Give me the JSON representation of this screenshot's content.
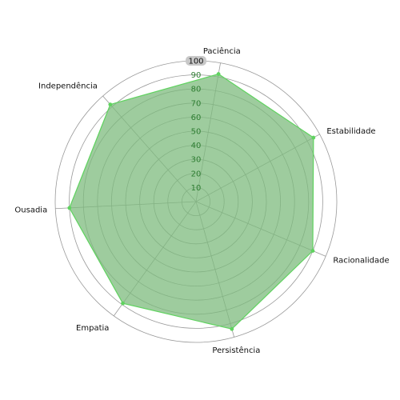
{
  "chart_data": {
    "type": "radar",
    "categories": [
      "Paciência",
      "Estabilidade",
      "Racionalidade",
      "Persistência",
      "Empatia",
      "Ousadia",
      "Independência"
    ],
    "series": [
      {
        "values": [
          92,
          95,
          90,
          94,
          89,
          90,
          92
        ]
      }
    ],
    "r_ticks": [
      "10",
      "20",
      "30",
      "40",
      "50",
      "60",
      "70",
      "80",
      "90",
      "100"
    ],
    "rlim": [
      0,
      100
    ],
    "grid": true,
    "colors": {
      "fill": "#7dbb7d",
      "stroke": "#5fd35f",
      "grid": "#999999",
      "tick_bg": "#c8c8c8"
    }
  }
}
